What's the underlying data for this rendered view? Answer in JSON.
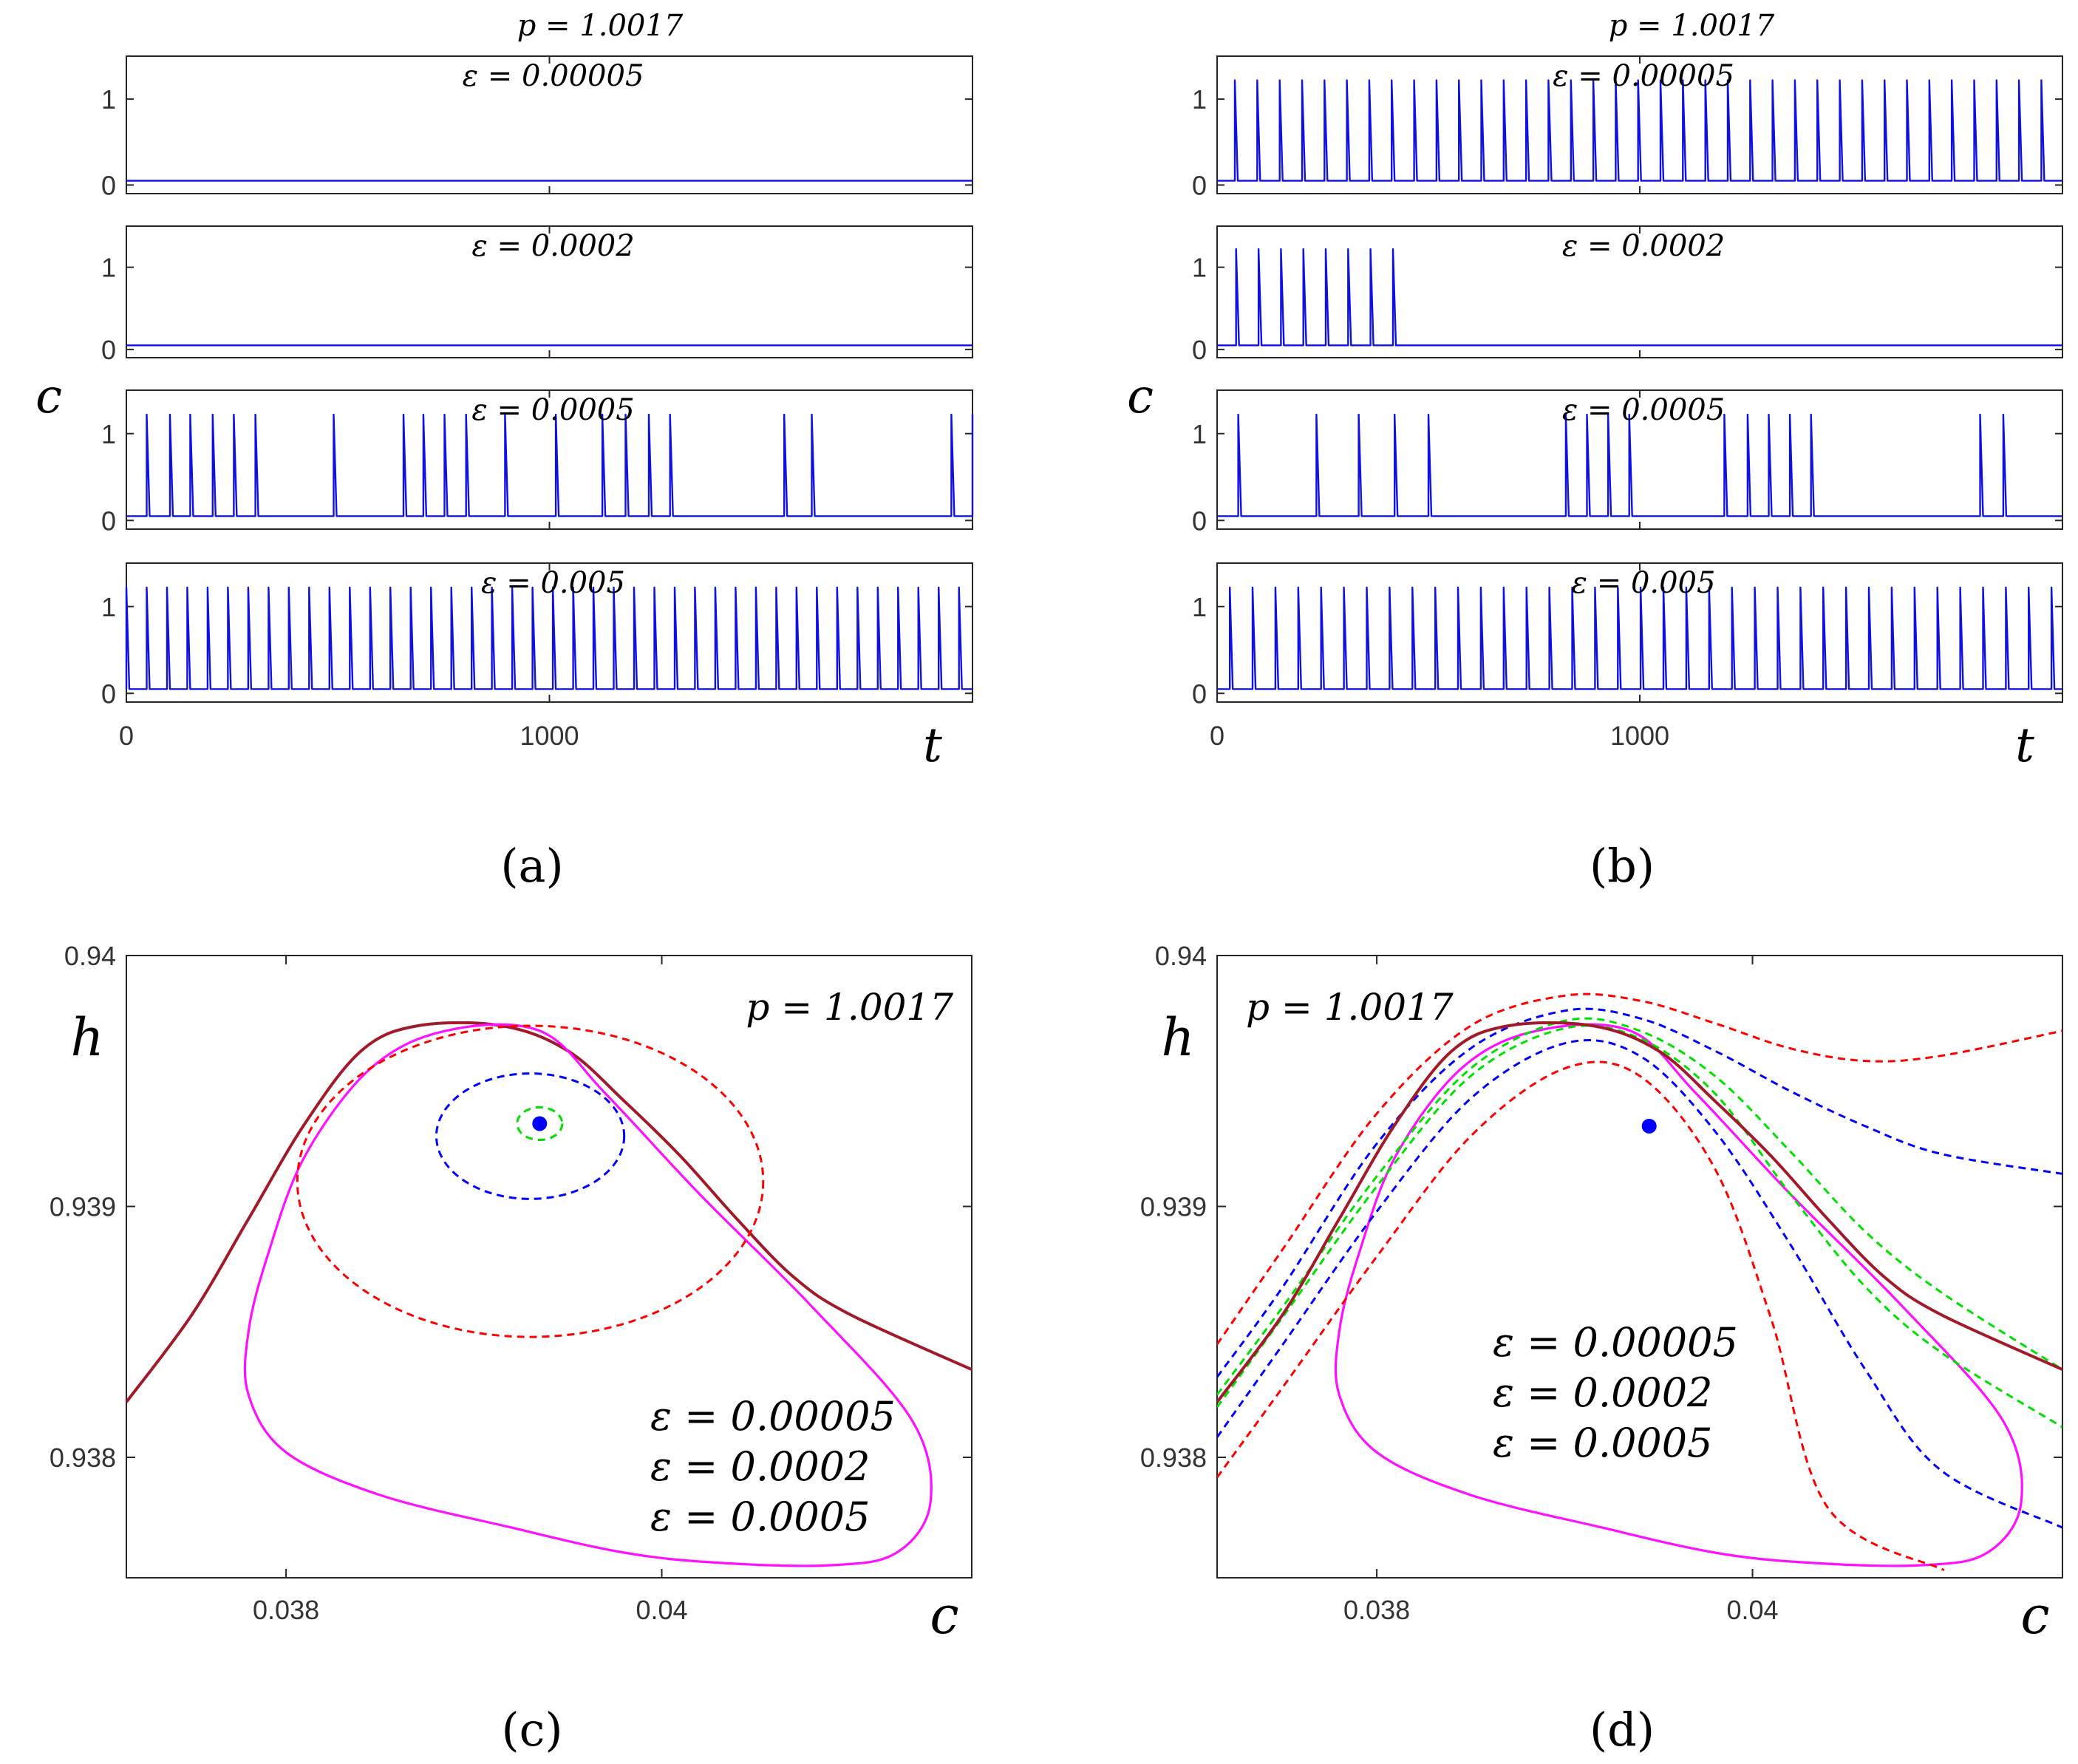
{
  "figure": {
    "panel_labels": [
      "(a)",
      "(b)",
      "(c)",
      "(d)"
    ]
  },
  "colors": {
    "trace": "#1010e0",
    "green": "#00e000",
    "blue": "#0000ff",
    "red": "#ff0000",
    "maroon": "#a01a2a",
    "magenta": "#ff10ff",
    "equilibrium": "#0000ff"
  },
  "chart_data": [
    {
      "id": "a",
      "type": "line",
      "title": "p = 1.0017",
      "ylabel": "c",
      "xlabel": "t",
      "xlim": [
        0,
        2000
      ],
      "ylim": [
        -0.1,
        1.5
      ],
      "xticks": [
        0,
        1000
      ],
      "yticks": [
        0,
        1
      ],
      "baseline": 0.05,
      "spike_peak": 1.22,
      "series": [
        {
          "name": "ε = 0.00005",
          "spike_times": []
        },
        {
          "name": "ε = 0.0002",
          "spike_times": []
        },
        {
          "name": "ε = 0.0005",
          "spike_times": [
            48,
            103,
            151,
            204,
            254,
            305,
            490,
            655,
            702,
            752,
            803,
            895,
            1015,
            1125,
            1180,
            1235,
            1285,
            1555,
            1620,
            1950,
            2000
          ]
        },
        {
          "name": "ε = 0.005",
          "spike_times": [
            0,
            48,
            96,
            144,
            192,
            240,
            288,
            336,
            384,
            432,
            480,
            528,
            576,
            624,
            672,
            720,
            768,
            816,
            864,
            912,
            960,
            1008,
            1056,
            1104,
            1152,
            1200,
            1248,
            1296,
            1344,
            1392,
            1440,
            1488,
            1536,
            1584,
            1632,
            1680,
            1728,
            1776,
            1824,
            1872,
            1920,
            1968
          ]
        }
      ]
    },
    {
      "id": "b",
      "type": "line",
      "title": "p = 1.0017",
      "ylabel": "c",
      "xlabel": "t",
      "xlim": [
        0,
        2000
      ],
      "ylim": [
        -0.1,
        1.5
      ],
      "xticks": [
        0,
        1000
      ],
      "yticks": [
        0,
        1
      ],
      "baseline": 0.05,
      "spike_peak": 1.22,
      "series": [
        {
          "name": "ε = 0.00005",
          "spike_times": [
            42,
            95,
            148,
            201,
            254,
            307,
            360,
            413,
            466,
            519,
            572,
            625,
            678,
            731,
            784,
            837,
            890,
            943,
            996,
            1049,
            1102,
            1155,
            1208,
            1261,
            1314,
            1367,
            1420,
            1473,
            1526,
            1579,
            1632,
            1685,
            1738,
            1791,
            1844,
            1897,
            1950
          ]
        },
        {
          "name": "ε = 0.0002",
          "spike_times": [
            45,
            98,
            151,
            204,
            257,
            310,
            363,
            416
          ]
        },
        {
          "name": "ε = 0.0005",
          "spike_times": [
            50,
            235,
            335,
            420,
            500,
            825,
            875,
            925,
            975,
            1200,
            1255,
            1305,
            1355,
            1405,
            1805,
            1860
          ]
        },
        {
          "name": "ε = 0.005",
          "spike_times": [
            30,
            84,
            138,
            192,
            246,
            300,
            354,
            408,
            462,
            516,
            570,
            624,
            678,
            732,
            786,
            840,
            894,
            948,
            1002,
            1056,
            1110,
            1164,
            1218,
            1272,
            1326,
            1380,
            1434,
            1488,
            1542,
            1596,
            1650,
            1704,
            1758,
            1812,
            1866,
            1920,
            1974
          ]
        }
      ]
    },
    {
      "id": "c",
      "type": "line",
      "title": "p = 1.0017",
      "xlabel": "c",
      "ylabel": "h",
      "xlim": [
        0.03715,
        0.04165
      ],
      "ylim": [
        0.93752,
        0.94
      ],
      "xticks": [
        0.038,
        0.04
      ],
      "yticks": [
        0.938,
        0.939,
        0.94
      ],
      "xtick_labels": [
        "0.038",
        "0.04"
      ],
      "ytick_labels": [
        "0.938",
        "0.939",
        "0.94"
      ],
      "equilibrium": {
        "c": 0.03935,
        "h": 0.93933
      },
      "legend": [
        "ε = 0.00005",
        "ε = 0.0002",
        "ε = 0.0005"
      ],
      "legend_location": "bottom-right",
      "curves": [
        {
          "name": "maroon curve",
          "style": "solid",
          "points": [
            [
              0.03715,
              0.93822
            ],
            [
              0.0375,
              0.93857
            ],
            [
              0.0378,
              0.93895
            ],
            [
              0.0381,
              0.93933
            ],
            [
              0.0384,
              0.93962
            ],
            [
              0.0387,
              0.93972
            ],
            [
              0.03915,
              0.93972
            ],
            [
              0.0395,
              0.93962
            ],
            [
              0.0398,
              0.93942
            ],
            [
              0.0401,
              0.9392
            ],
            [
              0.0404,
              0.93895
            ],
            [
              0.0407,
              0.93872
            ],
            [
              0.041,
              0.93857
            ],
            [
              0.04165,
              0.93835
            ]
          ]
        },
        {
          "name": "magenta loop",
          "style": "solid",
          "closed": true,
          "points": [
            [
              0.03935,
              0.9397
            ],
            [
              0.03885,
              0.9397
            ],
            [
              0.03845,
              0.93955
            ],
            [
              0.0381,
              0.9392
            ],
            [
              0.0379,
              0.9388
            ],
            [
              0.0378,
              0.9385
            ],
            [
              0.0378,
              0.93825
            ],
            [
              0.038,
              0.93802
            ],
            [
              0.0385,
              0.93785
            ],
            [
              0.0392,
              0.93772
            ],
            [
              0.0398,
              0.93762
            ],
            [
              0.0403,
              0.93758
            ],
            [
              0.0409,
              0.93757
            ],
            [
              0.04125,
              0.93762
            ],
            [
              0.04143,
              0.93782
            ],
            [
              0.04133,
              0.93815
            ],
            [
              0.0408,
              0.9386
            ],
            [
              0.0402,
              0.93905
            ],
            [
              0.0397,
              0.93945
            ]
          ]
        },
        {
          "name": "ε = 0.00005",
          "style": "dashed",
          "ellipse": {
            "cx": 0.03935,
            "cy": 0.93933,
            "rx": 0.00012,
            "ry": 6.5e-05
          }
        },
        {
          "name": "ε = 0.0002",
          "style": "dashed",
          "ellipse": {
            "cx": 0.0393,
            "cy": 0.93928,
            "rx": 0.0005,
            "ry": 0.00025
          }
        },
        {
          "name": "ε = 0.0005",
          "style": "dashed",
          "ellipse": {
            "cx": 0.0393,
            "cy": 0.9391,
            "rx": 0.00124,
            "ry": 0.00062
          }
        }
      ]
    },
    {
      "id": "d",
      "type": "line",
      "title": "p = 1.0017",
      "xlabel": "c",
      "ylabel": "h",
      "xlim": [
        0.03715,
        0.04165
      ],
      "ylim": [
        0.93752,
        0.94
      ],
      "xticks": [
        0.038,
        0.04
      ],
      "yticks": [
        0.938,
        0.939,
        0.94
      ],
      "xtick_labels": [
        "0.038",
        "0.04"
      ],
      "ytick_labels": [
        "0.938",
        "0.939",
        "0.94"
      ],
      "equilibrium": {
        "c": 0.03945,
        "h": 0.93932
      },
      "legend": [
        "ε = 0.00005",
        "ε = 0.0002",
        "ε = 0.0005"
      ],
      "legend_location": "center",
      "curves": [
        {
          "name": "magenta loop",
          "style": "solid",
          "closed": true,
          "points": [
            [
              0.03935,
              0.9397
            ],
            [
              0.03885,
              0.9397
            ],
            [
              0.03845,
              0.93955
            ],
            [
              0.0381,
              0.9392
            ],
            [
              0.0379,
              0.9388
            ],
            [
              0.0378,
              0.9385
            ],
            [
              0.0378,
              0.93825
            ],
            [
              0.038,
              0.93802
            ],
            [
              0.0385,
              0.93785
            ],
            [
              0.0392,
              0.93772
            ],
            [
              0.0398,
              0.93762
            ],
            [
              0.0403,
              0.93758
            ],
            [
              0.0409,
              0.93757
            ],
            [
              0.04125,
              0.93762
            ],
            [
              0.04143,
              0.93782
            ],
            [
              0.04133,
              0.93815
            ],
            [
              0.0408,
              0.9386
            ],
            [
              0.0402,
              0.93905
            ],
            [
              0.0397,
              0.93945
            ]
          ]
        },
        {
          "name": "ε = 0.00005 a",
          "style": "dashed",
          "color": "green",
          "points": [
            [
              0.03715,
              0.93825
            ],
            [
              0.0375,
              0.9386
            ],
            [
              0.038,
              0.93912
            ],
            [
              0.0385,
              0.93955
            ],
            [
              0.039,
              0.93974
            ],
            [
              0.0394,
              0.9397
            ],
            [
              0.0398,
              0.93952
            ],
            [
              0.0402,
              0.93922
            ],
            [
              0.0406,
              0.9389
            ],
            [
              0.041,
              0.93866
            ],
            [
              0.04165,
              0.93835
            ]
          ]
        },
        {
          "name": "ε = 0.00005 b",
          "style": "dashed",
          "color": "green",
          "points": [
            [
              0.03715,
              0.9382
            ],
            [
              0.0375,
              0.93856
            ],
            [
              0.038,
              0.93908
            ],
            [
              0.0385,
              0.93952
            ],
            [
              0.039,
              0.93971
            ],
            [
              0.0394,
              0.93967
            ],
            [
              0.0398,
              0.93945
            ],
            [
              0.0402,
              0.93905
            ],
            [
              0.0406,
              0.93868
            ],
            [
              0.041,
              0.93842
            ],
            [
              0.04165,
              0.93812
            ]
          ]
        },
        {
          "name": "ε = 0.0002 a",
          "style": "dashed",
          "color": "blue",
          "points": [
            [
              0.03715,
              0.93832
            ],
            [
              0.0375,
              0.93868
            ],
            [
              0.038,
              0.93925
            ],
            [
              0.0385,
              0.93963
            ],
            [
              0.039,
              0.93978
            ],
            [
              0.0394,
              0.93975
            ],
            [
              0.0398,
              0.93962
            ],
            [
              0.0402,
              0.93946
            ],
            [
              0.0406,
              0.93932
            ],
            [
              0.041,
              0.93921
            ],
            [
              0.04165,
              0.93913
            ]
          ]
        },
        {
          "name": "ε = 0.0002 b",
          "style": "dashed",
          "color": "blue",
          "points": [
            [
              0.03715,
              0.93808
            ],
            [
              0.0375,
              0.93845
            ],
            [
              0.038,
              0.93898
            ],
            [
              0.0385,
              0.93943
            ],
            [
              0.039,
              0.93965
            ],
            [
              0.0394,
              0.9396
            ],
            [
              0.0398,
              0.9393
            ],
            [
              0.0402,
              0.93885
            ],
            [
              0.0406,
              0.93835
            ],
            [
              0.041,
              0.93795
            ],
            [
              0.04165,
              0.93772
            ]
          ]
        },
        {
          "name": "ε = 0.0005 a",
          "style": "dashed",
          "color": "red",
          "points": [
            [
              0.03715,
              0.93845
            ],
            [
              0.0375,
              0.93883
            ],
            [
              0.038,
              0.93937
            ],
            [
              0.0385,
              0.93972
            ],
            [
              0.039,
              0.93984
            ],
            [
              0.0394,
              0.93982
            ],
            [
              0.0398,
              0.93973
            ],
            [
              0.0402,
              0.93963
            ],
            [
              0.0406,
              0.93958
            ],
            [
              0.041,
              0.9396
            ],
            [
              0.04165,
              0.9397
            ]
          ]
        },
        {
          "name": "ε = 0.0005 b",
          "style": "dashed",
          "color": "red",
          "points": [
            [
              0.03715,
              0.93792
            ],
            [
              0.0375,
              0.93828
            ],
            [
              0.038,
              0.9388
            ],
            [
              0.0385,
              0.93928
            ],
            [
              0.039,
              0.93955
            ],
            [
              0.0394,
              0.93952
            ],
            [
              0.0398,
              0.93915
            ],
            [
              0.0401,
              0.93855
            ],
            [
              0.0404,
              0.9378
            ],
            [
              0.04102,
              0.93755
            ]
          ]
        },
        {
          "name": "maroon curve",
          "style": "solid",
          "points": [
            [
              0.03715,
              0.93822
            ],
            [
              0.0375,
              0.93857
            ],
            [
              0.0378,
              0.93895
            ],
            [
              0.0381,
              0.93933
            ],
            [
              0.0384,
              0.93962
            ],
            [
              0.0387,
              0.93972
            ],
            [
              0.03915,
              0.93972
            ],
            [
              0.0395,
              0.93962
            ],
            [
              0.0398,
              0.93942
            ],
            [
              0.0401,
              0.9392
            ],
            [
              0.0404,
              0.93895
            ],
            [
              0.0407,
              0.93872
            ],
            [
              0.041,
              0.93857
            ],
            [
              0.04165,
              0.93835
            ]
          ]
        }
      ]
    }
  ]
}
